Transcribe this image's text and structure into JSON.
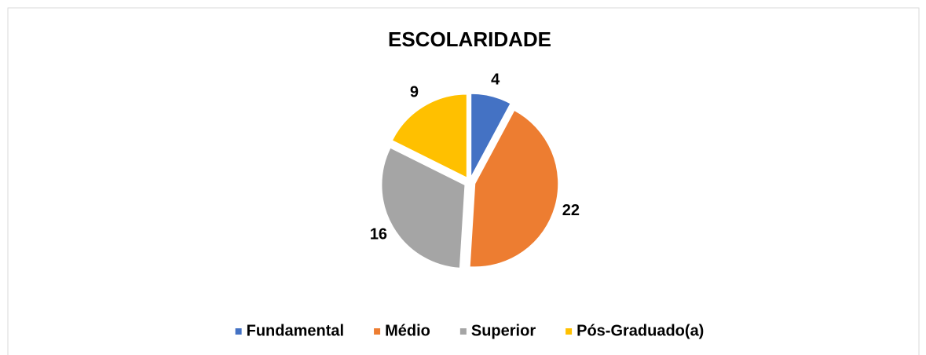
{
  "chart_data": {
    "type": "pie",
    "title": "ESCOLARIDADE",
    "categories": [
      "Fundamental",
      "Médio",
      "Superior",
      "Pós-Graduado(a)"
    ],
    "values": [
      4,
      22,
      16,
      9
    ],
    "colors": [
      "#4472c4",
      "#ed7d31",
      "#a5a5a5",
      "#ffc000"
    ],
    "legend": "bottom"
  }
}
